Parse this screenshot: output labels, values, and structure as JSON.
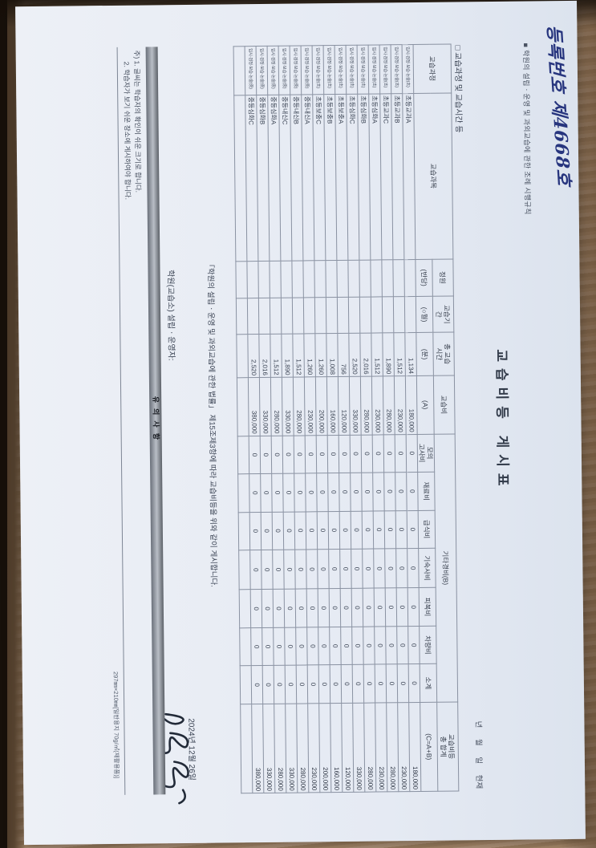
{
  "colors": {
    "ink_blue": "#27357e",
    "paper": "#e7ecf4",
    "desk": "#a08263",
    "notice_band": "#9aa0a9"
  },
  "document": {
    "registration_no": "등록번호 제4668호",
    "rule_reference": "■ 학원의 설립ㆍ운영 및 과외교습에 관한 조례 시행규칙",
    "title": "교습비등 게시표",
    "as_of_line": "년 월 일 현재",
    "section_heading": "□ 교습과정 및 교습시간 등",
    "table": {
      "headers": {
        "course": "교습과정",
        "subject": "교습과목",
        "capacity_top": "정원",
        "capacity_sub": "(반당)",
        "period_top": "교습기\n간",
        "period_sub": "(○월)",
        "hours_top": "총 교습\n시간",
        "hours_sub": "(분)",
        "fee_top": "교습비",
        "fee_sub": "(A)",
        "other_top": "기타경비(B)",
        "other_sub_mock": "모의\n고사비",
        "other_sub_material": "재료비",
        "other_sub_meal": "급식비",
        "other_sub_dorm": "기숙사비",
        "other_sub_clothing": "피복비",
        "other_sub_vehicle": "차량비",
        "other_sub_subtotal": "소계",
        "total_top": "교습비등\n총 합계",
        "total_sub": "(C=A+B)"
      },
      "rows": [
        {
          "cells": [
            "입시·검정·보습·논술(초)",
            "초등교과A",
            "",
            "",
            "1,134",
            "180,000",
            "0",
            "0",
            "0",
            "0",
            "0",
            "0",
            "0",
            "180,000"
          ]
        },
        {
          "cells": [
            "입시·검정·보습·논술(초)",
            "초등교과B",
            "",
            "",
            "1,512",
            "230,000",
            "0",
            "0",
            "0",
            "0",
            "0",
            "0",
            "0",
            "230,000"
          ]
        },
        {
          "cells": [
            "입시·검정·보습·논술(초)",
            "초등교과C",
            "",
            "",
            "1,890",
            "280,000",
            "0",
            "0",
            "0",
            "0",
            "0",
            "0",
            "0",
            "280,000"
          ]
        },
        {
          "cells": [
            "입시·검정·보습·논술(초)",
            "초등심화A",
            "",
            "",
            "1,512",
            "230,000",
            "0",
            "0",
            "0",
            "0",
            "0",
            "0",
            "0",
            "230,000"
          ]
        },
        {
          "cells": [
            "입시·검정·보습·논술(초)",
            "초등심화B",
            "",
            "",
            "2,016",
            "280,000",
            "0",
            "0",
            "0",
            "0",
            "0",
            "0",
            "0",
            "280,000"
          ]
        },
        {
          "cells": [
            "입시·검정·보습·논술(초)",
            "초등심화C",
            "",
            "",
            "2,520",
            "330,000",
            "0",
            "0",
            "0",
            "0",
            "0",
            "0",
            "0",
            "330,000"
          ]
        },
        {
          "cells": [
            "입시·검정·보습·논술(초)",
            "초등보충A",
            "",
            "",
            "756",
            "120,000",
            "0",
            "0",
            "0",
            "0",
            "0",
            "0",
            "0",
            "120,000"
          ]
        },
        {
          "cells": [
            "입시·검정·보습·논술(초)",
            "초등보충B",
            "",
            "",
            "1,008",
            "160,000",
            "0",
            "0",
            "0",
            "0",
            "0",
            "0",
            "0",
            "160,000"
          ]
        },
        {
          "cells": [
            "입시·검정·보습·논술(초)",
            "초등보충C",
            "",
            "",
            "1,260",
            "200,000",
            "0",
            "0",
            "0",
            "0",
            "0",
            "0",
            "0",
            "200,000"
          ]
        },
        {
          "cells": [
            "입시·검정·보습·논술(중)",
            "중등내신A",
            "",
            "",
            "1,260",
            "230,000",
            "0",
            "0",
            "0",
            "0",
            "0",
            "0",
            "0",
            "230,000"
          ]
        },
        {
          "cells": [
            "입시·검정·보습·논술(중)",
            "중등내신B",
            "",
            "",
            "1,512",
            "280,000",
            "0",
            "0",
            "0",
            "0",
            "0",
            "0",
            "0",
            "280,000"
          ]
        },
        {
          "cells": [
            "입시·검정·보습·논술(중)",
            "중등내신C",
            "",
            "",
            "1,890",
            "330,000",
            "0",
            "0",
            "0",
            "0",
            "0",
            "0",
            "0",
            "330,000"
          ]
        },
        {
          "cells": [
            "입시·검정·보습·논술(중)",
            "중등심화A",
            "",
            "",
            "1,512",
            "280,000",
            "0",
            "0",
            "0",
            "0",
            "0",
            "0",
            "0",
            "280,000"
          ]
        },
        {
          "cells": [
            "입시·검정·보습·논술(중)",
            "중등심화B",
            "",
            "",
            "2,016",
            "330,000",
            "0",
            "0",
            "0",
            "0",
            "0",
            "0",
            "0",
            "330,000"
          ]
        },
        {
          "cells": [
            "입시·검정·보습·논술(중)",
            "중등심화C",
            "",
            "",
            "2,520",
            "380,000",
            "0",
            "0",
            "0",
            "0",
            "0",
            "0",
            "0",
            "380,000"
          ]
        },
        {
          "cells": [
            "",
            "",
            "",
            "",
            "",
            "",
            "",
            "",
            "",
            "",
            "",
            "",
            "",
            ""
          ]
        }
      ]
    },
    "declaration": "「학원의 설립ㆍ운영 및 과외교습에 관한 법률」 제15조제3항에 따라 교습비등을 위와 같이 게시합니다.",
    "date": "2024년 12월 26일",
    "signer_label": "학원(교습소) 설립ㆍ운영자:",
    "notice_title": "유의사항",
    "note1": "주) 1. 글씨는 학습자의 확인이 쉬운 크기로 합니다.",
    "note2": "2. 학습자가 보기 쉬운 장소에 게시하여야 합니다.",
    "paper_spec": "297㎜×210㎜[일반용지 70g/㎡(재활용품)]"
  }
}
